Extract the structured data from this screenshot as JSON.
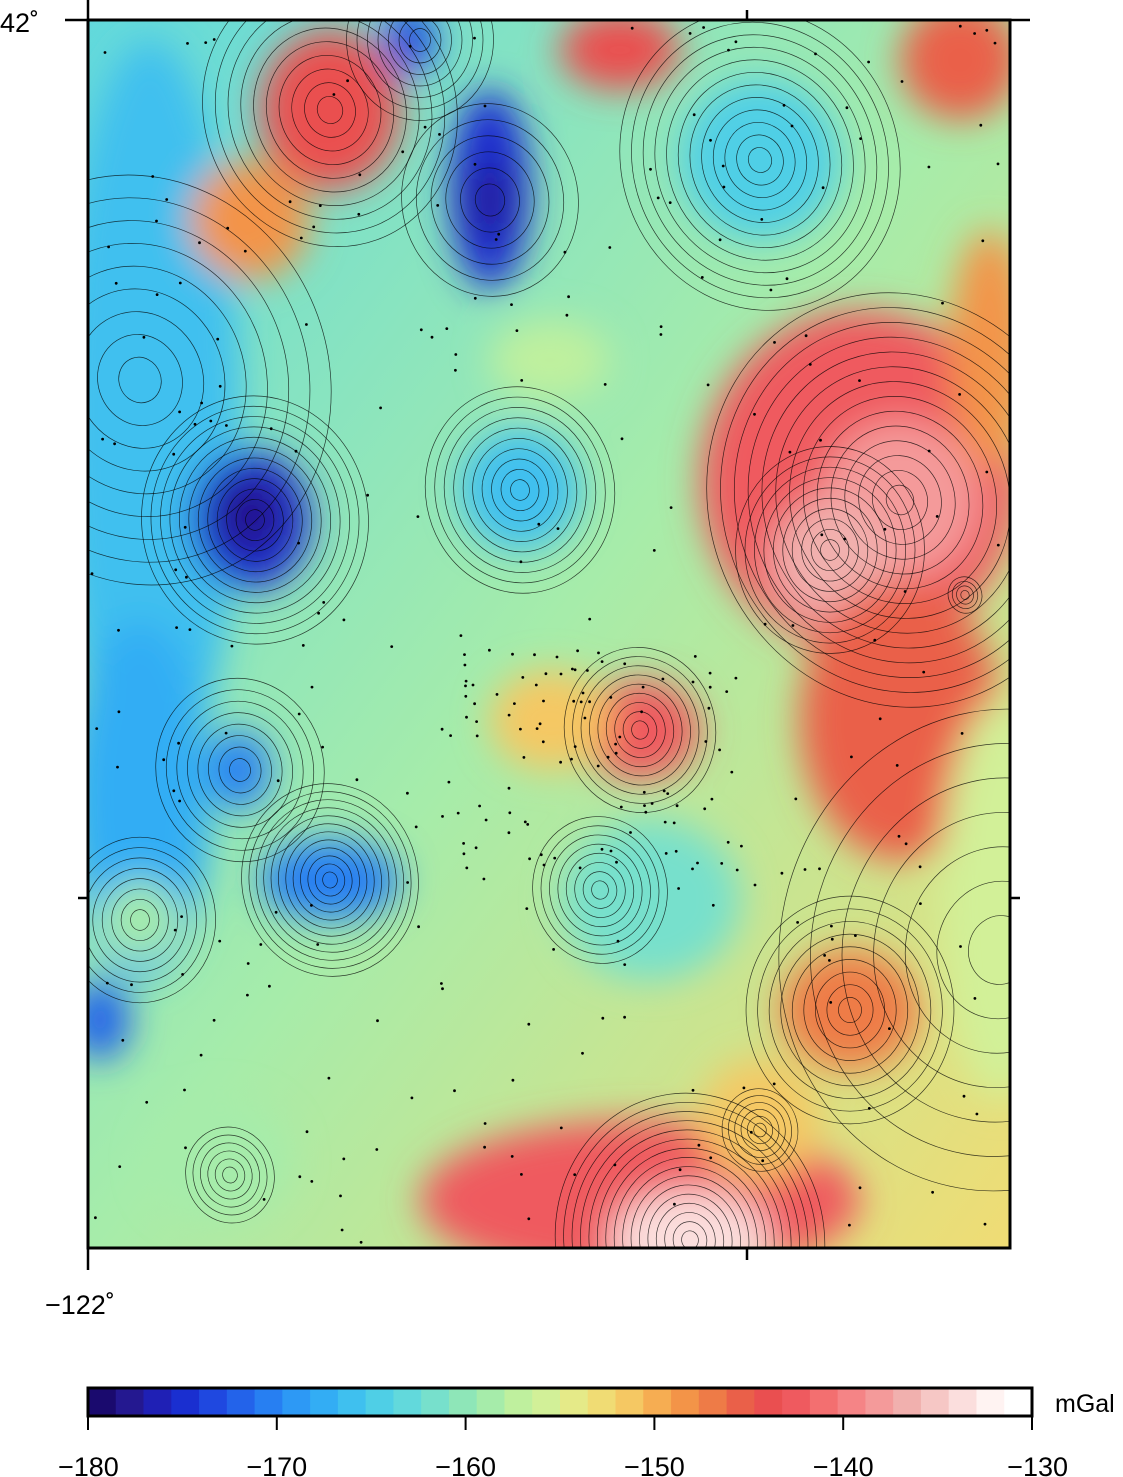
{
  "map": {
    "title": "",
    "top_lat_label": "42˚",
    "left_lon_label": "−122˚",
    "frame_ticks": {
      "x_ticks": [
        "−122˚",
        "",
        ""
      ],
      "y_ticks": [
        "42˚",
        ""
      ]
    },
    "contour_style": "thin black lines over smooth color shading",
    "stations": "small black dots scattered over the map"
  },
  "colorbar": {
    "unit": "mGal",
    "min": -180,
    "max": -130,
    "step": 2,
    "tick_labels": [
      "−180",
      "−170",
      "−160",
      "−150",
      "−140",
      "−130"
    ],
    "colors": [
      "#1a0a6e",
      "#241890",
      "#1f20b5",
      "#1a2fd0",
      "#1f48e0",
      "#2363ea",
      "#277ff2",
      "#2d99f5",
      "#33adf4",
      "#3fc0ef",
      "#4fcfe6",
      "#62d9dc",
      "#77e0cc",
      "#8ee6b8",
      "#a6ecaa",
      "#bff09e",
      "#d2f098",
      "#e5ea88",
      "#f0dc74",
      "#f5c863",
      "#f6ad52",
      "#f39448",
      "#ee7b47",
      "#ea6049",
      "#ea4f50",
      "#ef5a5f",
      "#f36f70",
      "#f58486",
      "#f49a9a",
      "#f1b0ae",
      "#f6c7c5",
      "#fbdedd",
      "#fff3f2",
      "#ffffff"
    ]
  }
}
